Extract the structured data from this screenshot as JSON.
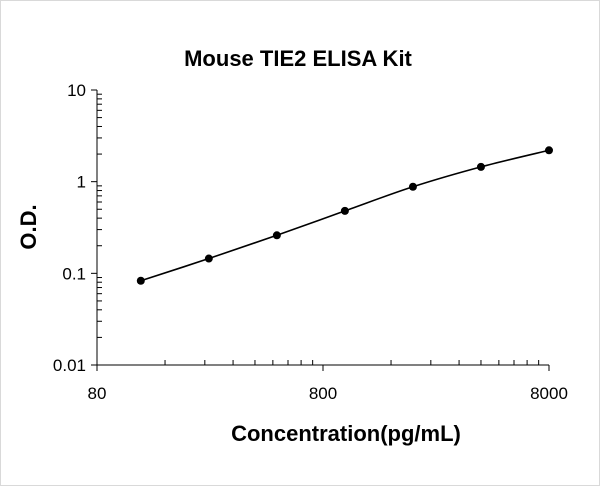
{
  "chart_data": {
    "type": "line",
    "title": "Mouse TIE2 ELISA Kit",
    "xlabel": "Concentration(pg/mL)",
    "ylabel": "O.D.",
    "x_scale": "log",
    "y_scale": "log",
    "xlim": [
      80,
      8000
    ],
    "ylim": [
      0.01,
      10
    ],
    "x_ticks": [
      "80",
      "800",
      "8000"
    ],
    "y_ticks": [
      "10",
      "1",
      "0.1",
      "0.01"
    ],
    "grid": false,
    "legend": "none",
    "series": [
      {
        "x": [
          125,
          250,
          500,
          1000,
          2000,
          4000,
          8000
        ],
        "y": [
          0.083,
          0.145,
          0.26,
          0.48,
          0.88,
          1.45,
          2.2
        ]
      }
    ],
    "colors": {
      "line": "#000000",
      "marker": "#000000",
      "axis": "#000000"
    }
  }
}
